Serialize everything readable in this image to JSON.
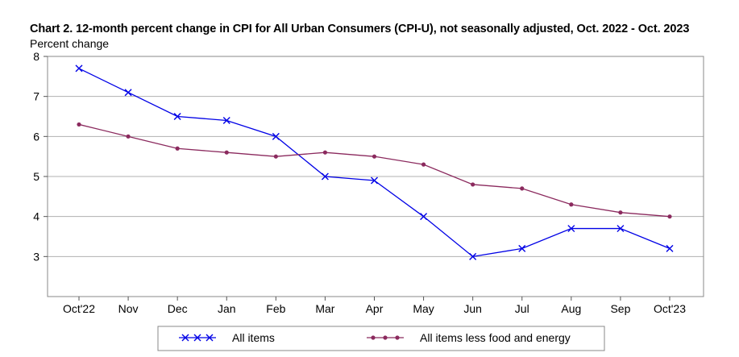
{
  "chart_data": {
    "type": "line",
    "title": "Chart 2. 12-month percent change in CPI for All Urban Consumers (CPI-U), not seasonally adjusted, Oct. 2022 - Oct. 2023",
    "ylabel": "Percent change",
    "xlabel": "",
    "categories": [
      "Oct'22",
      "Nov",
      "Dec",
      "Jan",
      "Feb",
      "Mar",
      "Apr",
      "May",
      "Jun",
      "Jul",
      "Aug",
      "Sep",
      "Oct'23"
    ],
    "ylim": [
      2,
      8
    ],
    "yticks": [
      "3",
      "4",
      "5",
      "6",
      "7",
      "8"
    ],
    "ytick_values": [
      3,
      4,
      5,
      6,
      7,
      8
    ],
    "grid": true,
    "legend_position": "bottom",
    "series": [
      {
        "name": "All items",
        "color": "#0000e6",
        "marker": "x",
        "values": [
          7.7,
          7.1,
          6.5,
          6.4,
          6.0,
          5.0,
          4.9,
          4.0,
          3.0,
          3.2,
          3.7,
          3.7,
          3.2
        ]
      },
      {
        "name": "All items less food and energy",
        "color": "#8b2a5e",
        "marker": "dot",
        "values": [
          6.3,
          6.0,
          5.7,
          5.6,
          5.5,
          5.6,
          5.5,
          5.3,
          4.8,
          4.7,
          4.3,
          4.1,
          4.0
        ]
      }
    ]
  }
}
